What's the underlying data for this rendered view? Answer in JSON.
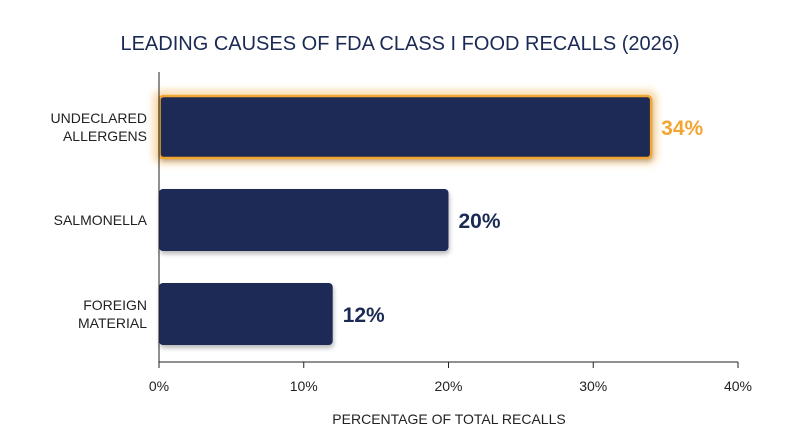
{
  "chart_data": {
    "type": "bar",
    "orientation": "horizontal",
    "title": "LEADING CAUSES OF FDA CLASS I FOOD RECALLS (2026)",
    "xlabel": "PERCENTAGE OF TOTAL RECALLS",
    "ylabel": "",
    "categories": [
      [
        "UNDECLARED",
        "ALLERGENS"
      ],
      [
        "SALMONELLA"
      ],
      [
        "FOREIGN",
        "MATERIAL"
      ]
    ],
    "values": [
      34,
      20,
      12
    ],
    "value_labels": [
      "34%",
      "20%",
      "12%"
    ],
    "xlim": [
      0,
      40
    ],
    "xticks": [
      0,
      10,
      20,
      30,
      40
    ],
    "xtick_labels": [
      "0%",
      "10%",
      "20%",
      "30%",
      "40%"
    ],
    "highlighted_index": 0,
    "grid": false,
    "legend": "none",
    "colors": {
      "bar": "#1b2a55",
      "highlight": "#f2a531",
      "text": "#1b2a55",
      "axis": "#222222"
    }
  }
}
